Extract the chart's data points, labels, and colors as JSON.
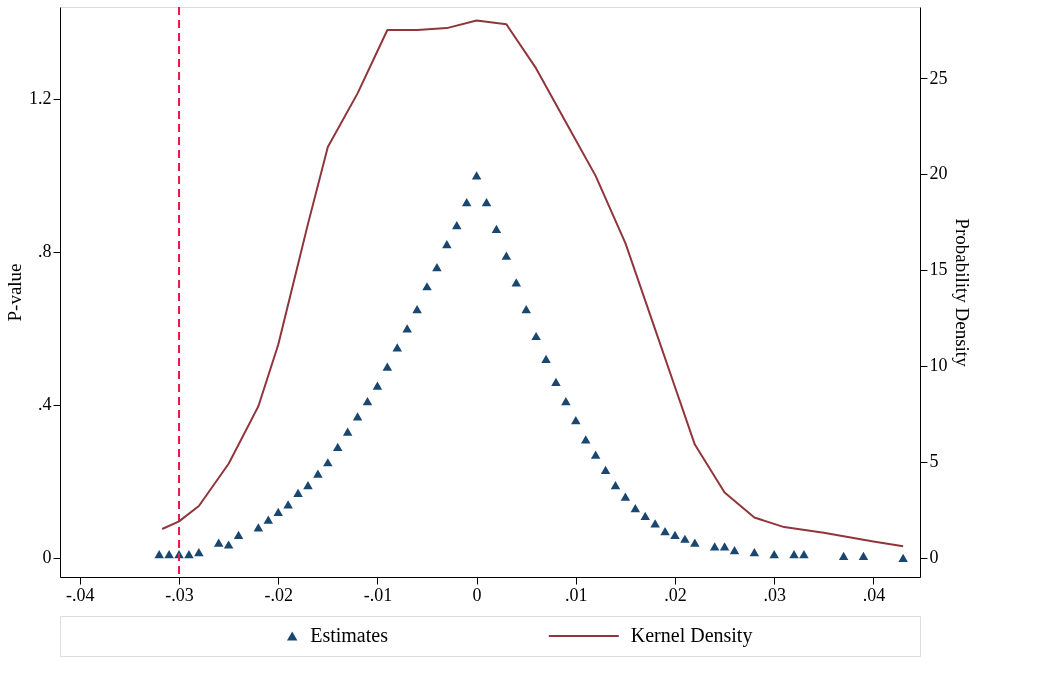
{
  "chart_data": {
    "type": "scatter",
    "xlabel": null,
    "ylabel": "P-value",
    "y2label": "Probability Density",
    "xlim": [
      -0.042,
      0.0447
    ],
    "ylim": [
      -0.05,
      1.44
    ],
    "y2lim": [
      -1.0,
      28.7
    ],
    "xticks": [
      {
        "value": -0.04,
        "label": "-.04"
      },
      {
        "value": -0.03,
        "label": "-.03"
      },
      {
        "value": -0.02,
        "label": "-.02"
      },
      {
        "value": -0.01,
        "label": "-.01"
      },
      0,
      {
        "value": 0.01,
        "label": ".01"
      },
      {
        "value": 0.02,
        "label": ".02"
      },
      {
        "value": 0.03,
        "label": ".03"
      },
      {
        "value": 0.04,
        "label": ".04"
      }
    ],
    "yticks": [
      0,
      {
        "value": 0.4,
        "label": ".4"
      },
      {
        "value": 0.8,
        "label": ".8"
      },
      1.2
    ],
    "y2ticks": [
      0,
      5,
      10,
      15,
      20,
      25
    ],
    "grid": false,
    "legend": "bottom",
    "ref_lines": [
      {
        "axis": "x",
        "value": -0.03,
        "label": null,
        "color": "#e8194a",
        "line_style": "dashed"
      }
    ],
    "series": [
      {
        "name": "Estimates",
        "marker": "triangle",
        "color": "#1a476f",
        "x": [
          -0.032,
          -0.031,
          -0.03,
          -0.029,
          -0.028,
          -0.026,
          -0.025,
          -0.024,
          -0.022,
          -0.021,
          -0.02,
          -0.019,
          -0.018,
          -0.017,
          -0.016,
          -0.015,
          -0.014,
          -0.013,
          -0.012,
          -0.011,
          -0.01,
          -0.009,
          -0.008,
          -0.007,
          -0.006,
          -0.005,
          -0.004,
          -0.003,
          -0.002,
          -0.001,
          0.0,
          0.001,
          0.002,
          0.003,
          0.004,
          0.005,
          0.006,
          0.007,
          0.008,
          0.009,
          0.01,
          0.011,
          0.012,
          0.013,
          0.014,
          0.015,
          0.016,
          0.017,
          0.018,
          0.019,
          0.02,
          0.021,
          0.022,
          0.024,
          0.025,
          0.026,
          0.028,
          0.03,
          0.032,
          0.033,
          0.037,
          0.039,
          0.043
        ],
        "values": [
          0.01,
          0.01,
          0.01,
          0.01,
          0.015,
          0.04,
          0.035,
          0.06,
          0.08,
          0.1,
          0.12,
          0.14,
          0.17,
          0.19,
          0.22,
          0.25,
          0.29,
          0.33,
          0.37,
          0.41,
          0.45,
          0.5,
          0.55,
          0.6,
          0.65,
          0.71,
          0.76,
          0.82,
          0.87,
          0.93,
          1.0,
          0.93,
          0.86,
          0.79,
          0.72,
          0.65,
          0.58,
          0.52,
          0.46,
          0.41,
          0.36,
          0.31,
          0.27,
          0.23,
          0.19,
          0.16,
          0.13,
          0.11,
          0.09,
          0.07,
          0.06,
          0.05,
          0.04,
          0.03,
          0.03,
          0.02,
          0.015,
          0.01,
          0.01,
          0.01,
          0.005,
          0.005,
          0.0
        ]
      },
      {
        "name": "Kernel Density",
        "type": "line",
        "axis": "y2",
        "color": "#90353b",
        "x": [
          -0.0317,
          -0.03,
          -0.028,
          -0.025,
          -0.022,
          -0.02,
          -0.017,
          -0.015,
          -0.012,
          -0.009,
          -0.006,
          -0.003,
          0.0,
          0.003,
          0.006,
          0.009,
          0.012,
          0.015,
          0.018,
          0.02,
          0.022,
          0.025,
          0.028,
          0.031,
          0.035,
          0.04,
          0.043
        ],
        "values": [
          1.5,
          1.9,
          2.7,
          4.9,
          7.9,
          11.1,
          17.4,
          21.4,
          24.2,
          27.5,
          27.5,
          27.6,
          28.0,
          27.8,
          25.5,
          22.7,
          19.9,
          16.4,
          11.9,
          8.9,
          5.9,
          3.4,
          2.1,
          1.6,
          1.3,
          0.85,
          0.6
        ]
      }
    ]
  }
}
